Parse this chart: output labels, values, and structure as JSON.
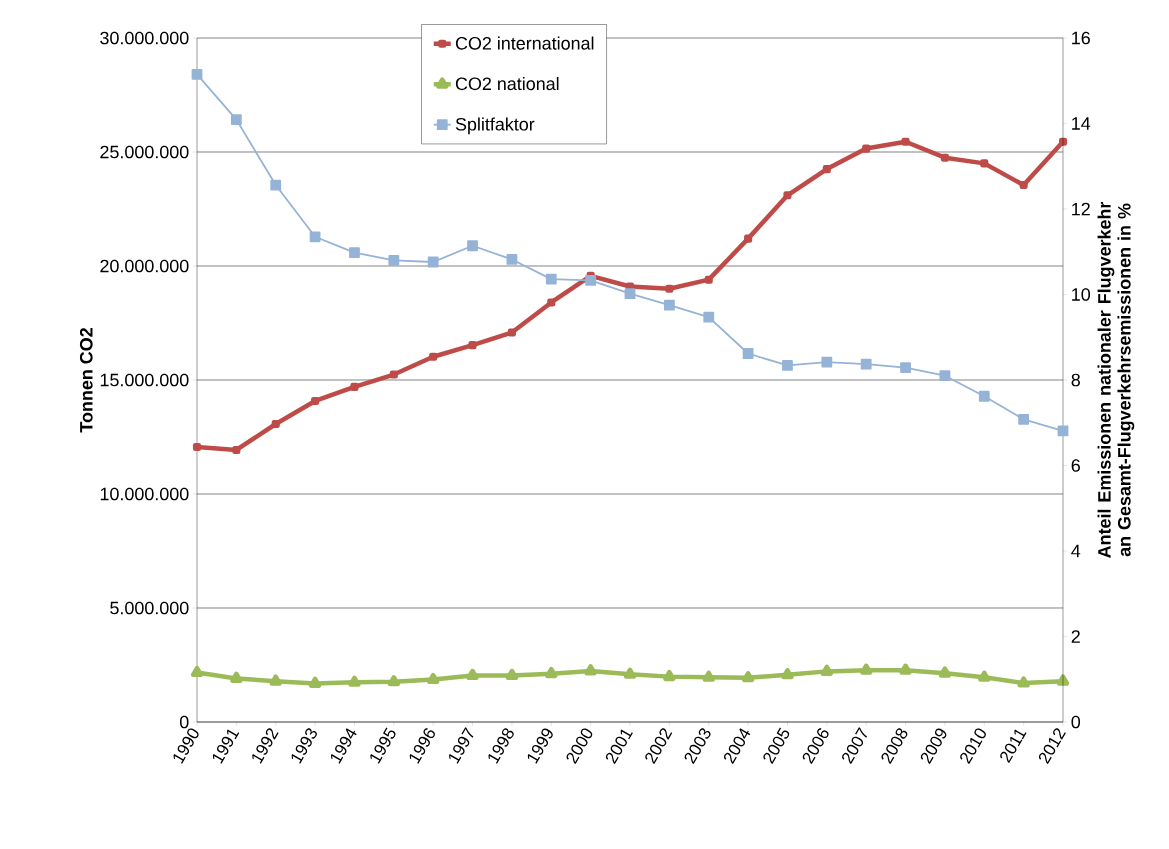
{
  "chart_data": {
    "type": "line",
    "ylabel": "Tonnen CO2",
    "y2label": "Anteil Emissionen nationaler Flugverkehr an Gesamt-Flugverkehrsemissionen in %",
    "categories": [
      "1990",
      "1991",
      "1992",
      "1993",
      "1994",
      "1995",
      "1996",
      "1997",
      "1998",
      "1999",
      "2000",
      "2001",
      "2002",
      "2003",
      "2004",
      "2005",
      "2006",
      "2007",
      "2008",
      "2009",
      "2010",
      "2011",
      "2012"
    ],
    "series": [
      {
        "name": "CO2 international",
        "color": "#be4b48",
        "marker": "square",
        "values": [
          12060000,
          11930000,
          13070000,
          14080000,
          14700000,
          15240000,
          16020000,
          16530000,
          17080000,
          18400000,
          19570000,
          19100000,
          19000000,
          19400000,
          21200000,
          23100000,
          24250000,
          25150000,
          25450000,
          24750000,
          24500000,
          23550000,
          25450000
        ]
      },
      {
        "name": "CO2 national",
        "color": "#9bbb59",
        "marker": "triangle",
        "values": [
          2170000,
          1910000,
          1790000,
          1690000,
          1740000,
          1760000,
          1860000,
          2040000,
          2040000,
          2120000,
          2240000,
          2090000,
          1990000,
          1960000,
          1940000,
          2070000,
          2220000,
          2270000,
          2270000,
          2140000,
          1960000,
          1710000,
          1790000
        ]
      },
      {
        "name": "Splitfaktor",
        "color": "#95b3d7",
        "marker": "square",
        "axis": "y2",
        "values": [
          15.15,
          14.09,
          12.56,
          11.35,
          10.98,
          10.8,
          10.76,
          11.14,
          10.82,
          10.36,
          10.33,
          10.02,
          9.75,
          9.47,
          8.62,
          8.34,
          8.42,
          8.37,
          8.29,
          8.1,
          7.62,
          7.08,
          6.81
        ]
      }
    ],
    "ylim": [
      0,
      30000000
    ],
    "yticks": [
      0,
      {
        "value": 5000000,
        "label": "5.000.000"
      },
      {
        "value": 10000000,
        "label": "10.000.000"
      },
      {
        "value": 15000000,
        "label": "15.000.000"
      },
      {
        "value": 20000000,
        "label": "20.000.000"
      },
      {
        "value": 25000000,
        "label": "25.000.000"
      },
      {
        "value": 30000000,
        "label": "30.000.000"
      }
    ],
    "y2lim": [
      0,
      16
    ],
    "y2ticks": [
      0,
      2,
      4,
      6,
      8,
      10,
      12,
      14,
      16
    ],
    "grid": "y",
    "legend": "top",
    "line_style": "solid"
  }
}
